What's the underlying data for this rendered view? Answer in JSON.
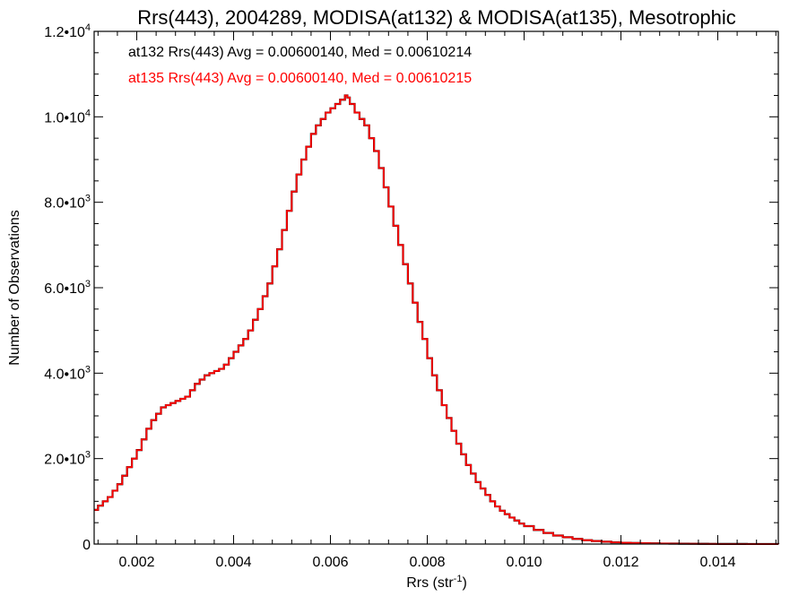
{
  "chart_data": {
    "type": "line",
    "title": "Rrs(443), 2004289, MODISA(at132) & MODISA(at135), Mesotrophic",
    "xlabel_main": "Rrs (str",
    "xlabel_sup": "-1",
    "xlabel_close": ")",
    "ylabel": "Number of Observations",
    "xlim": [
      0.00112,
      0.01525
    ],
    "ylim": [
      0,
      12000
    ],
    "x_ticks": [
      0.002,
      0.004,
      0.006,
      0.008,
      0.01,
      0.012,
      0.014
    ],
    "x_tick_labels": [
      "0.002",
      "0.004",
      "0.006",
      "0.008",
      "0.010",
      "0.012",
      "0.014"
    ],
    "y_ticks": [
      {
        "value": 0,
        "mant": "0",
        "exp": ""
      },
      {
        "value": 2000,
        "mant": "2.0•10",
        "exp": "3"
      },
      {
        "value": 4000,
        "mant": "4.0•10",
        "exp": "3"
      },
      {
        "value": 6000,
        "mant": "6.0•10",
        "exp": "3"
      },
      {
        "value": 8000,
        "mant": "8.0•10",
        "exp": "3"
      },
      {
        "value": 10000,
        "mant": "1.0•10",
        "exp": "4"
      },
      {
        "value": 12000,
        "mant": "1.2•10",
        "exp": "4"
      }
    ],
    "annotations": [
      {
        "text": "at132 Rrs(443) Avg = 0.00600140, Med = 0.00610214",
        "color": "#000000"
      },
      {
        "text": "at135 Rrs(443) Avg = 0.00600140, Med = 0.00610215",
        "color": "#ff0000"
      }
    ],
    "series": [
      {
        "color": "#000000",
        "x": [
          0.00112,
          0.0012,
          0.0013,
          0.0014,
          0.0015,
          0.0016,
          0.0017,
          0.0018,
          0.0019,
          0.002,
          0.0021,
          0.0022,
          0.0023,
          0.0024,
          0.0025,
          0.0026,
          0.0027,
          0.0028,
          0.0029,
          0.003,
          0.0031,
          0.0032,
          0.0033,
          0.0034,
          0.0035,
          0.0036,
          0.0037,
          0.0038,
          0.0039,
          0.004,
          0.0041,
          0.0042,
          0.0043,
          0.0044,
          0.0045,
          0.0046,
          0.0047,
          0.0048,
          0.0049,
          0.005,
          0.0051,
          0.0052,
          0.0053,
          0.0054,
          0.0055,
          0.0056,
          0.0057,
          0.0058,
          0.0059,
          0.006,
          0.0061,
          0.0062,
          0.0063,
          0.00635,
          0.0064,
          0.0065,
          0.0066,
          0.0067,
          0.0068,
          0.0069,
          0.007,
          0.0071,
          0.0072,
          0.0073,
          0.0074,
          0.0075,
          0.0076,
          0.0077,
          0.0078,
          0.0079,
          0.008,
          0.0081,
          0.0082,
          0.0083,
          0.0084,
          0.0085,
          0.0086,
          0.0087,
          0.0088,
          0.0089,
          0.009,
          0.0091,
          0.0092,
          0.0093,
          0.0094,
          0.0095,
          0.0096,
          0.0097,
          0.0098,
          0.0099,
          0.01,
          0.0102,
          0.0104,
          0.0106,
          0.0108,
          0.011,
          0.0112,
          0.0114,
          0.0116,
          0.0118,
          0.012,
          0.0122,
          0.0124,
          0.0126,
          0.0128,
          0.013,
          0.0132,
          0.0134,
          0.0136,
          0.0138,
          0.014,
          0.0142,
          0.0144,
          0.0146,
          0.0148,
          0.015,
          0.01525
        ],
        "y": [
          800,
          900,
          1000,
          1100,
          1250,
          1400,
          1600,
          1800,
          2000,
          2200,
          2450,
          2700,
          2900,
          3050,
          3200,
          3250,
          3300,
          3350,
          3400,
          3450,
          3600,
          3750,
          3850,
          3950,
          4000,
          4050,
          4100,
          4200,
          4350,
          4500,
          4650,
          4800,
          5000,
          5250,
          5500,
          5800,
          6100,
          6500,
          6900,
          7350,
          7800,
          8250,
          8650,
          9000,
          9300,
          9600,
          9800,
          9950,
          10100,
          10200,
          10300,
          10400,
          10500,
          10450,
          10300,
          10100,
          9950,
          9800,
          9500,
          9200,
          8800,
          8350,
          7900,
          7450,
          7000,
          6550,
          6100,
          5650,
          5200,
          4800,
          4350,
          3950,
          3600,
          3250,
          2950,
          2650,
          2350,
          2100,
          1850,
          1650,
          1450,
          1300,
          1150,
          1000,
          880,
          780,
          700,
          620,
          550,
          480,
          420,
          330,
          260,
          200,
          160,
          120,
          90,
          70,
          55,
          40,
          30,
          25,
          20,
          15,
          12,
          10,
          8,
          6,
          5,
          4,
          3,
          2,
          2,
          1,
          1,
          1,
          0
        ]
      },
      {
        "color": "#ff0000",
        "x": [
          0.00112,
          0.0012,
          0.0013,
          0.0014,
          0.0015,
          0.0016,
          0.0017,
          0.0018,
          0.0019,
          0.002,
          0.0021,
          0.0022,
          0.0023,
          0.0024,
          0.0025,
          0.0026,
          0.0027,
          0.0028,
          0.0029,
          0.003,
          0.0031,
          0.0032,
          0.0033,
          0.0034,
          0.0035,
          0.0036,
          0.0037,
          0.0038,
          0.0039,
          0.004,
          0.0041,
          0.0042,
          0.0043,
          0.0044,
          0.0045,
          0.0046,
          0.0047,
          0.0048,
          0.0049,
          0.005,
          0.0051,
          0.0052,
          0.0053,
          0.0054,
          0.0055,
          0.0056,
          0.0057,
          0.0058,
          0.0059,
          0.006,
          0.0061,
          0.0062,
          0.0063,
          0.00635,
          0.0064,
          0.0065,
          0.0066,
          0.0067,
          0.0068,
          0.0069,
          0.007,
          0.0071,
          0.0072,
          0.0073,
          0.0074,
          0.0075,
          0.0076,
          0.0077,
          0.0078,
          0.0079,
          0.008,
          0.0081,
          0.0082,
          0.0083,
          0.0084,
          0.0085,
          0.0086,
          0.0087,
          0.0088,
          0.0089,
          0.009,
          0.0091,
          0.0092,
          0.0093,
          0.0094,
          0.0095,
          0.0096,
          0.0097,
          0.0098,
          0.0099,
          0.01,
          0.0102,
          0.0104,
          0.0106,
          0.0108,
          0.011,
          0.0112,
          0.0114,
          0.0116,
          0.0118,
          0.012,
          0.0122,
          0.0124,
          0.0126,
          0.0128,
          0.013,
          0.0132,
          0.0134,
          0.0136,
          0.0138,
          0.014,
          0.0142,
          0.0144,
          0.0146,
          0.0148,
          0.015,
          0.01525
        ],
        "y": [
          800,
          900,
          1000,
          1100,
          1250,
          1400,
          1600,
          1800,
          2000,
          2200,
          2450,
          2700,
          2900,
          3050,
          3200,
          3250,
          3300,
          3350,
          3400,
          3450,
          3600,
          3750,
          3850,
          3950,
          4000,
          4050,
          4100,
          4200,
          4350,
          4500,
          4650,
          4800,
          5000,
          5250,
          5500,
          5800,
          6100,
          6500,
          6900,
          7350,
          7800,
          8250,
          8650,
          9000,
          9300,
          9600,
          9800,
          9950,
          10100,
          10200,
          10300,
          10400,
          10500,
          10450,
          10300,
          10100,
          9950,
          9800,
          9500,
          9200,
          8800,
          8350,
          7900,
          7450,
          7000,
          6550,
          6100,
          5650,
          5200,
          4800,
          4350,
          3950,
          3600,
          3250,
          2950,
          2650,
          2350,
          2100,
          1850,
          1650,
          1450,
          1300,
          1150,
          1000,
          880,
          780,
          700,
          620,
          550,
          480,
          420,
          330,
          260,
          200,
          160,
          120,
          90,
          70,
          55,
          40,
          30,
          25,
          20,
          15,
          12,
          10,
          8,
          6,
          5,
          4,
          3,
          2,
          2,
          1,
          1,
          1,
          0
        ]
      }
    ]
  }
}
